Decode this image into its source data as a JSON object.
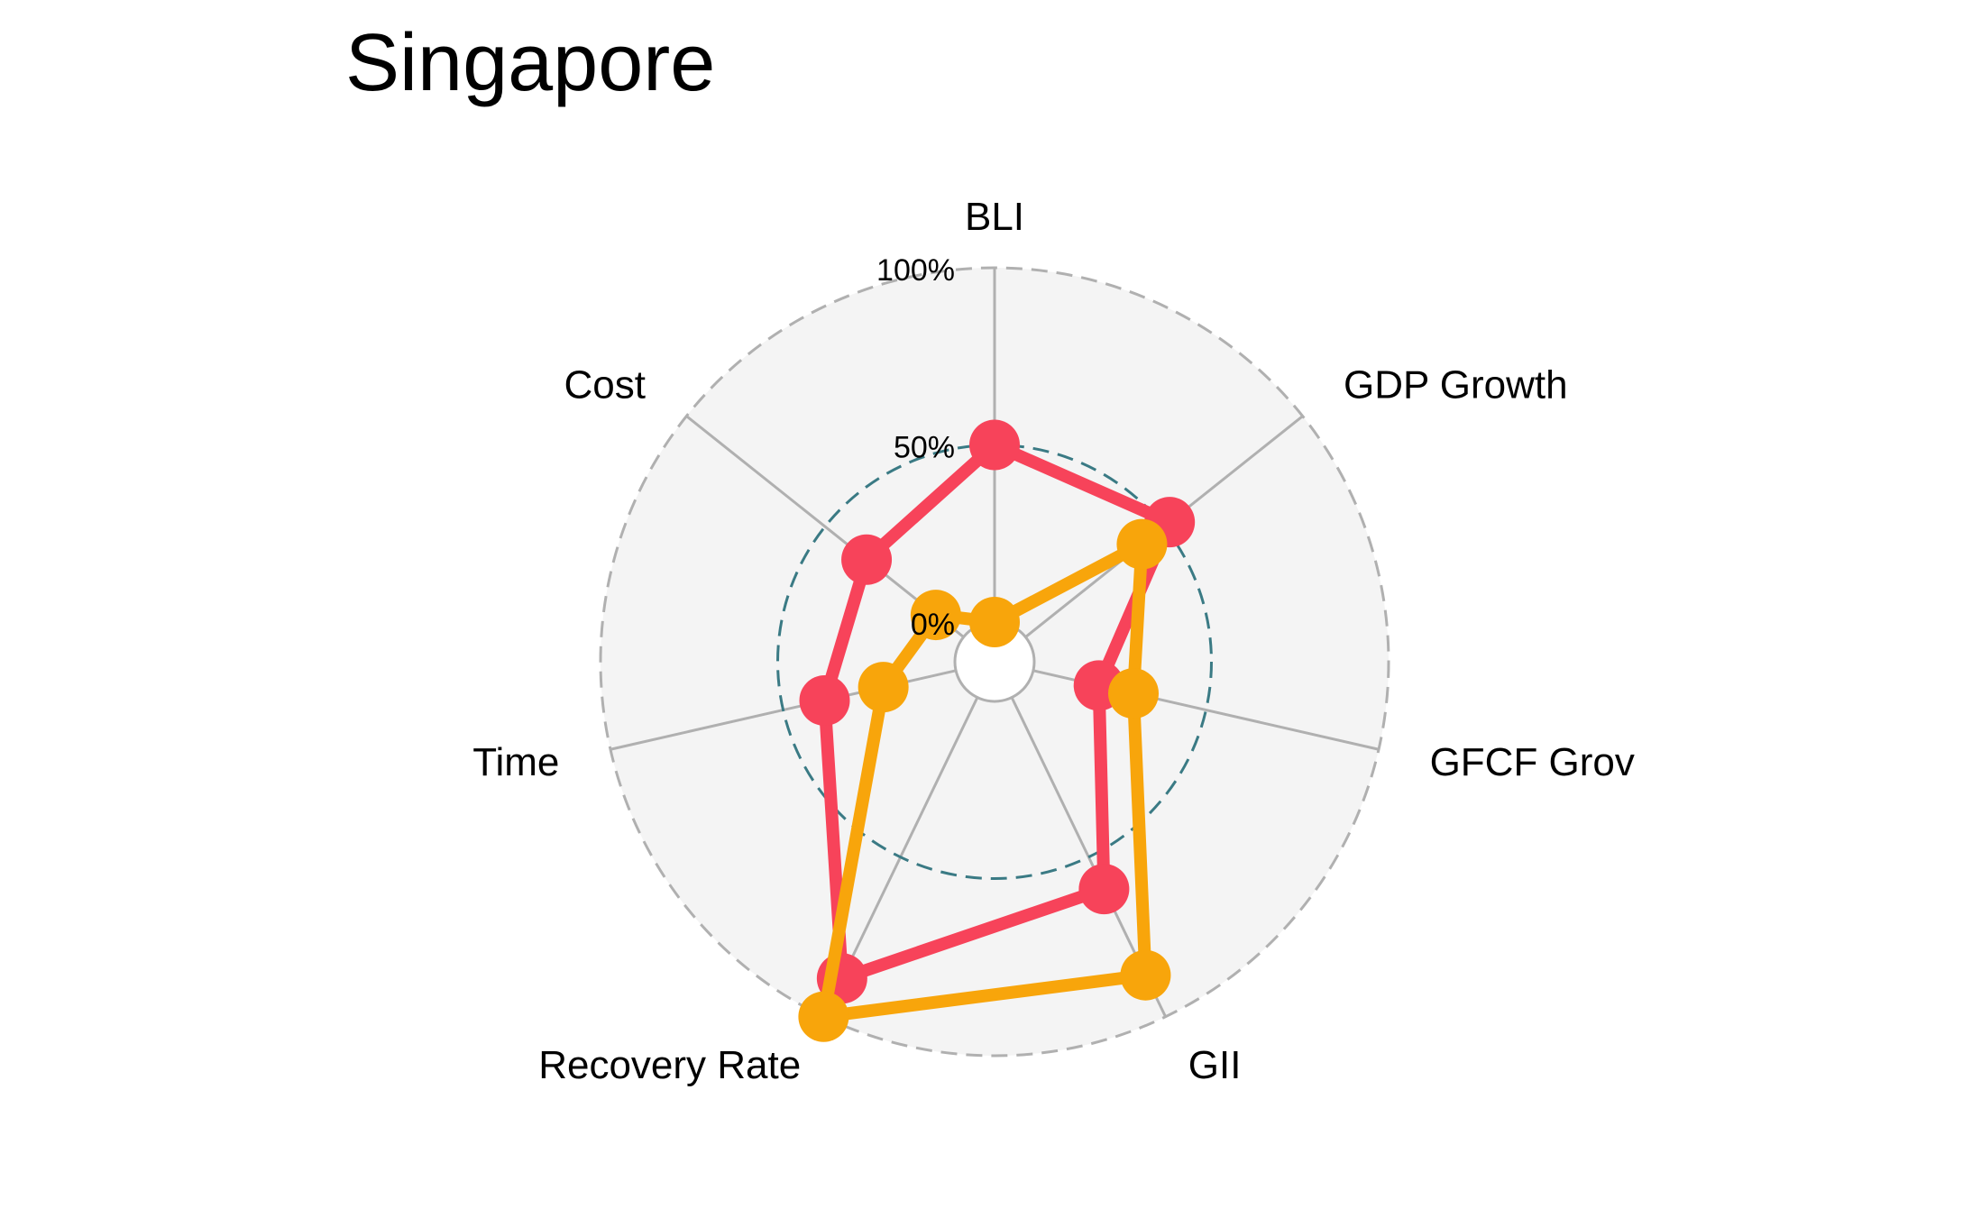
{
  "chart_data": {
    "type": "radar",
    "title": "Singapore",
    "axes": [
      "BLI",
      "GDP Growth",
      "GFCF Growth",
      "GII",
      "Recovery Rate",
      "Time",
      "Cost"
    ],
    "axis_label_display": [
      "BLI",
      "GDP Growth",
      "GFCF Grov",
      "GII",
      "Recovery Rate",
      "Time",
      "Cost"
    ],
    "radial_range": [
      0,
      100
    ],
    "radial_ticks": [
      {
        "value": 0,
        "label": "0%"
      },
      {
        "value": 50,
        "label": "50%"
      },
      {
        "value": 100,
        "label": "100%"
      }
    ],
    "series": [
      {
        "color": "#f7435a",
        "values": [
          50,
          52,
          19,
          60,
          88,
          38,
          35
        ]
      },
      {
        "color": "#f8a50b",
        "values": [
          0,
          42,
          29,
          87,
          100,
          21,
          10
        ]
      }
    ],
    "grid": {
      "background": "#f4f4f4",
      "spoke_color": "#b0b0b0",
      "outer_circle_color": "#b0b0b0",
      "mid_circle_color": "#3a7a84"
    },
    "legend": "none"
  }
}
